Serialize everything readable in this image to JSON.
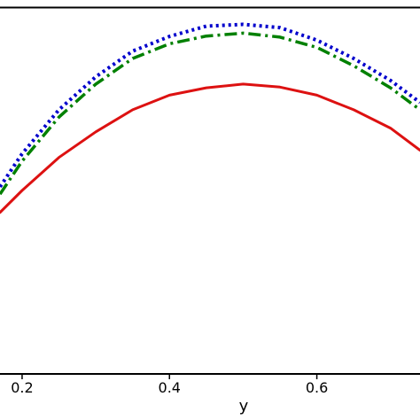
{
  "chart_data": {
    "type": "line",
    "xlabel": "y",
    "ylabel": "",
    "title": "",
    "xlim": [
      0.17,
      0.74
    ],
    "ylim": [
      0.0,
      1.0
    ],
    "grid": false,
    "x_ticks": [
      0.2,
      0.4,
      0.6
    ],
    "x_tick_labels": [
      "0.2",
      "0.4",
      "0.6"
    ],
    "series": [
      {
        "color": "#0000cc",
        "style": "dotted",
        "x": [
          0.17,
          0.2,
          0.25,
          0.3,
          0.35,
          0.4,
          0.45,
          0.5,
          0.55,
          0.6,
          0.65,
          0.7,
          0.74
        ],
        "y": [
          0.51,
          0.6,
          0.72,
          0.81,
          0.88,
          0.92,
          0.948,
          0.953,
          0.944,
          0.91,
          0.86,
          0.8,
          0.74
        ]
      },
      {
        "color": "#008000",
        "style": "dashdot",
        "x": [
          0.17,
          0.2,
          0.25,
          0.3,
          0.35,
          0.4,
          0.45,
          0.5,
          0.55,
          0.6,
          0.65,
          0.7,
          0.74
        ],
        "y": [
          0.49,
          0.58,
          0.7,
          0.79,
          0.86,
          0.9,
          0.921,
          0.929,
          0.918,
          0.89,
          0.84,
          0.78,
          0.72
        ]
      },
      {
        "color": "#dd1111",
        "style": "solid",
        "x": [
          0.17,
          0.2,
          0.25,
          0.3,
          0.35,
          0.4,
          0.45,
          0.5,
          0.55,
          0.6,
          0.65,
          0.7,
          0.74
        ],
        "y": [
          0.44,
          0.5,
          0.59,
          0.66,
          0.72,
          0.76,
          0.78,
          0.79,
          0.782,
          0.76,
          0.72,
          0.67,
          0.61
        ]
      }
    ]
  }
}
